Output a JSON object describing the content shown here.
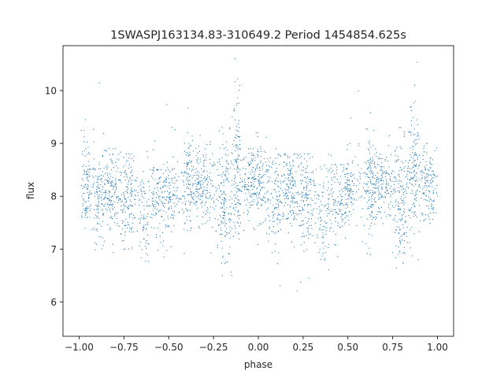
{
  "chart_data": {
    "type": "scatter",
    "title": "1SWASPJ163134.83-310649.2 Period 1454854.625s",
    "xlabel": "phase",
    "ylabel": "flux",
    "xlim": [
      -1.09,
      1.09
    ],
    "ylim": [
      5.35,
      10.85
    ],
    "x_ticks": [
      -1.0,
      -0.75,
      -0.5,
      -0.25,
      0.0,
      0.25,
      0.5,
      0.75,
      1.0
    ],
    "x_tick_labels": [
      "−1.00",
      "−0.75",
      "−0.50",
      "−0.25",
      "0.00",
      "0.25",
      "0.50",
      "0.75",
      "1.00"
    ],
    "y_ticks": [
      6,
      7,
      8,
      9,
      10
    ],
    "y_tick_labels": [
      "6",
      "7",
      "8",
      "9",
      "10"
    ],
    "grid": false,
    "legend": "none",
    "series": [
      {
        "color": "#1f77b4",
        "marker_size": 0.6,
        "phase_period": 1.0,
        "baseline_flux": 8.15,
        "points_per_cycle": 2600,
        "clusters": [
          {
            "phase_center": -0.96,
            "phase_width": 0.015,
            "flux_center": 8.3,
            "flux_spread": 0.5,
            "flux_min": 7.6,
            "flux_max": 9.45,
            "weight": 1.0
          },
          {
            "phase_center": -0.89,
            "phase_width": 0.02,
            "flux_center": 8.0,
            "flux_spread": 0.45,
            "flux_min": 5.6,
            "flux_max": 10.25,
            "weight": 1.1
          },
          {
            "phase_center": -0.82,
            "phase_width": 0.025,
            "flux_center": 8.15,
            "flux_spread": 0.4,
            "flux_min": 6.9,
            "flux_max": 8.9,
            "weight": 1.6
          },
          {
            "phase_center": -0.73,
            "phase_width": 0.025,
            "flux_center": 8.0,
            "flux_spread": 0.45,
            "flux_min": 7.0,
            "flux_max": 8.8,
            "weight": 1.5
          },
          {
            "phase_center": -0.64,
            "phase_width": 0.015,
            "flux_center": 7.5,
            "flux_spread": 0.4,
            "flux_min": 6.6,
            "flux_max": 8.2,
            "weight": 0.6
          },
          {
            "phase_center": -0.56,
            "phase_width": 0.03,
            "flux_center": 7.9,
            "flux_spread": 0.35,
            "flux_min": 6.2,
            "flux_max": 8.5,
            "weight": 1.2
          },
          {
            "phase_center": -0.49,
            "phase_width": 0.02,
            "flux_center": 7.9,
            "flux_spread": 0.35,
            "flux_min": 6.9,
            "flux_max": 10.35,
            "weight": 0.9
          },
          {
            "phase_center": -0.39,
            "phase_width": 0.015,
            "flux_center": 8.3,
            "flux_spread": 0.5,
            "flux_min": 6.05,
            "flux_max": 10.25,
            "weight": 1.1
          },
          {
            "phase_center": -0.31,
            "phase_width": 0.04,
            "flux_center": 8.2,
            "flux_spread": 0.35,
            "flux_min": 7.4,
            "flux_max": 9.0,
            "weight": 1.8
          },
          {
            "phase_center": -0.19,
            "phase_width": 0.025,
            "flux_center": 7.9,
            "flux_spread": 0.55,
            "flux_min": 6.5,
            "flux_max": 9.3,
            "weight": 1.7
          },
          {
            "phase_center": -0.12,
            "phase_width": 0.015,
            "flux_center": 8.6,
            "flux_spread": 0.6,
            "flux_min": 6.8,
            "flux_max": 10.6,
            "weight": 1.3
          },
          {
            "phase_center": -0.04,
            "phase_width": 0.03,
            "flux_center": 8.3,
            "flux_spread": 0.35,
            "flux_min": 7.3,
            "flux_max": 8.9,
            "weight": 1.4
          },
          {
            "phase_center": 0.02,
            "phase_width": 0.025,
            "flux_center": 8.3,
            "flux_spread": 0.4,
            "flux_min": 7.0,
            "flux_max": 9.2,
            "weight": 1.2
          },
          {
            "phase_center": 0.1,
            "phase_width": 0.02,
            "flux_center": 8.0,
            "flux_spread": 0.45,
            "flux_min": 5.6,
            "flux_max": 8.9,
            "weight": 1.0
          },
          {
            "phase_center": 0.18,
            "phase_width": 0.025,
            "flux_center": 8.1,
            "flux_spread": 0.4,
            "flux_min": 6.9,
            "flux_max": 8.8,
            "weight": 1.5
          },
          {
            "phase_center": 0.27,
            "phase_width": 0.03,
            "flux_center": 7.9,
            "flux_spread": 0.45,
            "flux_min": 5.9,
            "flux_max": 8.8,
            "weight": 1.5
          },
          {
            "phase_center": 0.36,
            "phase_width": 0.015,
            "flux_center": 7.4,
            "flux_spread": 0.4,
            "flux_min": 6.6,
            "flux_max": 8.0,
            "weight": 0.6
          },
          {
            "phase_center": 0.44,
            "phase_width": 0.03,
            "flux_center": 7.9,
            "flux_spread": 0.35,
            "flux_min": 6.1,
            "flux_max": 8.6,
            "weight": 1.2
          },
          {
            "phase_center": 0.51,
            "phase_width": 0.02,
            "flux_center": 8.0,
            "flux_spread": 0.35,
            "flux_min": 6.9,
            "flux_max": 10.35,
            "weight": 0.9
          },
          {
            "phase_center": 0.62,
            "phase_width": 0.015,
            "flux_center": 8.3,
            "flux_spread": 0.5,
            "flux_min": 6.0,
            "flux_max": 10.2,
            "weight": 1.1
          },
          {
            "phase_center": 0.69,
            "phase_width": 0.04,
            "flux_center": 8.2,
            "flux_spread": 0.35,
            "flux_min": 7.4,
            "flux_max": 9.0,
            "weight": 1.8
          },
          {
            "phase_center": 0.8,
            "phase_width": 0.025,
            "flux_center": 7.9,
            "flux_spread": 0.55,
            "flux_min": 6.5,
            "flux_max": 9.3,
            "weight": 1.7
          },
          {
            "phase_center": 0.87,
            "phase_width": 0.015,
            "flux_center": 8.6,
            "flux_spread": 0.6,
            "flux_min": 6.8,
            "flux_max": 10.6,
            "weight": 1.3
          },
          {
            "phase_center": 0.95,
            "phase_width": 0.025,
            "flux_center": 8.3,
            "flux_spread": 0.35,
            "flux_min": 7.3,
            "flux_max": 9.0,
            "weight": 1.3
          }
        ]
      }
    ]
  }
}
